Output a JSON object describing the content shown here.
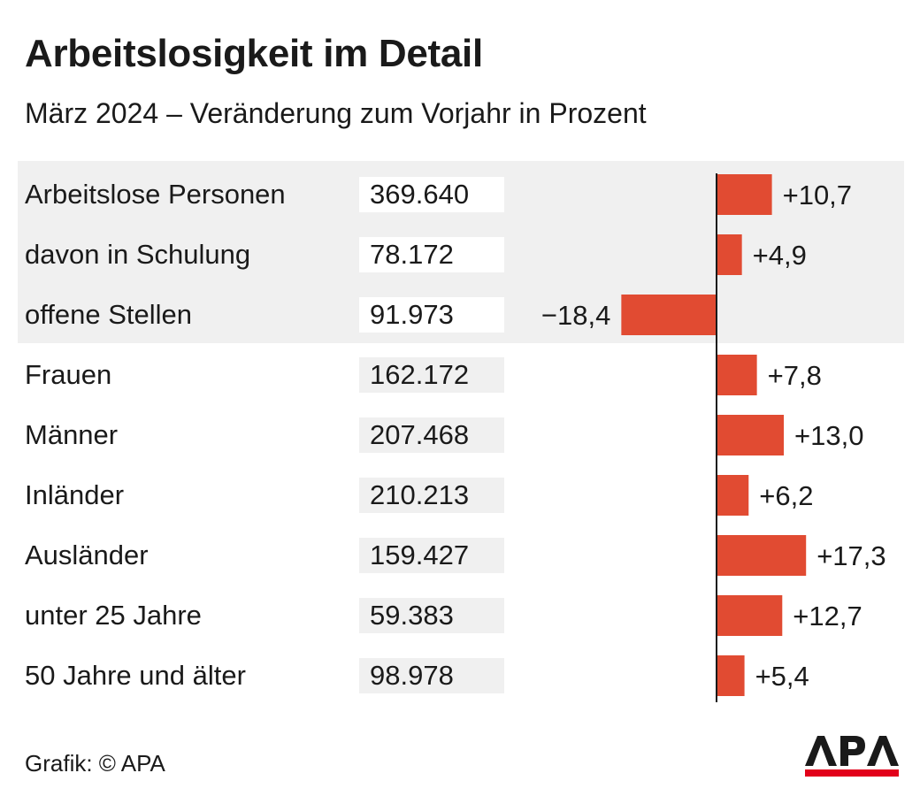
{
  "title": "Arbeitslosigkeit im Detail",
  "subtitle": "März 2024 – Veränderung zum Vorjahr in Prozent",
  "source": "Grafik: © APA",
  "logo": "APA",
  "colors": {
    "bar": "#e14b32",
    "axis": "#1a1a1a",
    "panel": "#f0f0f0"
  },
  "chart_data": {
    "type": "bar",
    "orientation": "horizontal",
    "title": "Arbeitslosigkeit im Detail",
    "subtitle": "März 2024 – Veränderung zum Vorjahr in Prozent",
    "xlim": [
      -20,
      20
    ],
    "categories": [
      "Arbeitslose Personen",
      "davon in Schulung",
      "offene Stellen",
      "Frauen",
      "Männer",
      "Inländer",
      "Ausländer",
      "unter 25 Jahre",
      "50 Jahre und älter"
    ],
    "absolute_values": [
      "369.640",
      "78.172",
      "91.973",
      "162.172",
      "207.468",
      "210.213",
      "159.427",
      "59.383",
      "98.978"
    ],
    "values": [
      10.7,
      4.9,
      -18.4,
      7.8,
      13.0,
      6.2,
      17.3,
      12.7,
      5.4
    ],
    "value_labels": [
      "+10,7",
      "+4,9",
      "−18,4",
      "+7,8",
      "+13,0",
      "+6,2",
      "+17,3",
      "+12,7",
      "+5,4"
    ],
    "highlighted_group": [
      "Arbeitslose Personen",
      "davon in Schulung",
      "offene Stellen"
    ]
  }
}
